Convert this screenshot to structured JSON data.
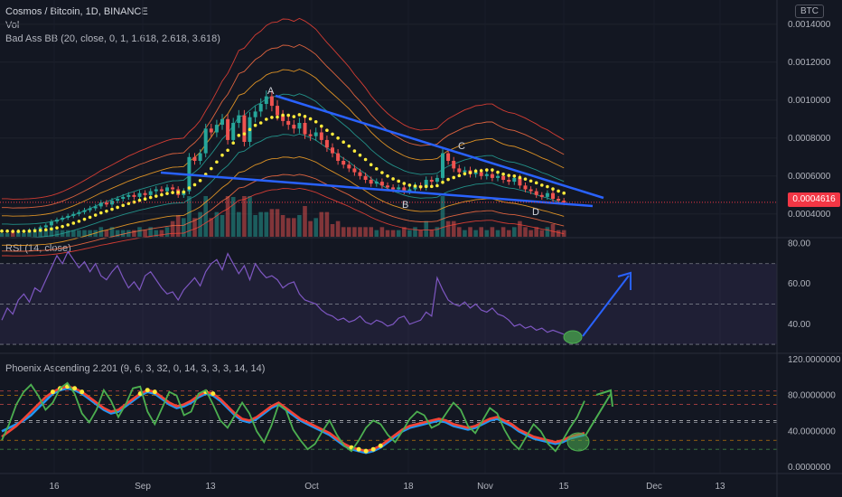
{
  "header": {
    "symbol": "Cosmos / Bitcoin, 1D, BINANCE",
    "vol_label": "Vol",
    "indicator_bb": "Bad Ass BB (20, close, 0, 1, 1.618, 2.618, 3.618)",
    "currency_button": "BTC"
  },
  "colors": {
    "background": "#131722",
    "up": "#26a69a",
    "down": "#ef5350",
    "rsi_line": "#7e57c2",
    "trend_line": "#2962ff",
    "ma_dots": "#ffeb3b"
  },
  "price_tag": "0.0004616",
  "rsi_panel": {
    "label": "RSI (14, close)"
  },
  "phoenix_panel": {
    "label": "Phoenix Ascending 2.201 (9, 6, 3, 32, 0, 14, 3, 3, 3, 14, 14)"
  },
  "annotations": {
    "a": "A",
    "b": "B",
    "c": "C",
    "d": "D"
  },
  "chart_data": [
    {
      "type": "candlestick",
      "title": "Cosmos / Bitcoin, 1D, BINANCE",
      "y_axis_ticks": [
        "0.0014000",
        "0.0012000",
        "0.0010000",
        "0.0008000",
        "0.0006000",
        "0.0004000"
      ],
      "ylim": [
        0.00028,
        0.00148
      ],
      "x_axis_ticks": [
        "16",
        "Sep",
        "13",
        "Oct",
        "18",
        "Nov",
        "15",
        "Dec",
        "13"
      ],
      "last_price": 0.0004616,
      "close_series": [
        0.00031,
        0.00031,
        0.000305,
        0.00031,
        0.00031,
        0.000315,
        0.00032,
        0.00033,
        0.00034,
        0.00036,
        0.00037,
        0.00038,
        0.00039,
        0.0004,
        0.00041,
        0.00042,
        0.00043,
        0.00044,
        0.00046,
        0.00045,
        0.00047,
        0.00048,
        0.00049,
        0.0005,
        0.00049,
        0.00051,
        0.0005,
        0.00052,
        0.00053,
        0.00052,
        0.00054,
        0.00053,
        0.0005,
        0.00052,
        0.0007,
        0.00068,
        0.00072,
        0.00085,
        0.00083,
        0.00087,
        0.0009,
        0.00079,
        0.00088,
        0.00092,
        0.00078,
        0.00091,
        0.00094,
        0.00098,
        0.00102,
        0.00097,
        0.00092,
        0.00089,
        0.00087,
        0.00085,
        0.00088,
        0.00082,
        0.00081,
        0.00083,
        0.00079,
        0.00075,
        0.00072,
        0.00068,
        0.00066,
        0.00064,
        0.00062,
        0.0006,
        0.00058,
        0.00056,
        0.00057,
        0.00055,
        0.00054,
        0.00053,
        0.00054,
        0.00052,
        0.00053,
        0.00055,
        0.00054,
        0.00058,
        0.00057,
        0.00059,
        0.00072,
        0.00068,
        0.00064,
        0.00062,
        0.00063,
        0.00061,
        0.00062,
        0.0006,
        0.00061,
        0.00059,
        0.0006,
        0.00058,
        0.00057,
        0.00059,
        0.00055,
        0.00053,
        0.00052,
        0.0005,
        0.00049,
        0.00051,
        0.00048,
        0.00047,
        0.00046
      ]
    },
    {
      "type": "line",
      "title": "RSI (14, close)",
      "y_axis_ticks": [
        "80.00",
        "60.00",
        "40.00"
      ],
      "ylim": [
        26,
        82
      ],
      "bands": [
        70,
        50,
        30
      ],
      "values": [
        42,
        48,
        45,
        52,
        55,
        51,
        58,
        56,
        62,
        68,
        74,
        70,
        76,
        72,
        68,
        71,
        66,
        70,
        64,
        62,
        66,
        69,
        63,
        58,
        61,
        57,
        64,
        66,
        62,
        58,
        55,
        56,
        52,
        57,
        60,
        63,
        59,
        66,
        70,
        72,
        67,
        75,
        70,
        65,
        69,
        62,
        70,
        66,
        63,
        64,
        62,
        58,
        60,
        61,
        55,
        52,
        51,
        50,
        47,
        45,
        44,
        42,
        43,
        41,
        42,
        44,
        41,
        40,
        42,
        41,
        39,
        40,
        43,
        44,
        40,
        41,
        42,
        46,
        44,
        63,
        57,
        52,
        50,
        49,
        51,
        48,
        50,
        47,
        46,
        48,
        45,
        44,
        42,
        39,
        40,
        38,
        39,
        37,
        38,
        36,
        37,
        36,
        35
      ]
    },
    {
      "type": "line",
      "title": "Phoenix Ascending 2.201 (9, 6, 3, 32, 0, 14, 3, 3, 3, 14, 14)",
      "y_axis_ticks": [
        "120.0000000",
        "80.0000000",
        "40.0000000",
        "0.0000000"
      ],
      "ylim": [
        -5,
        125
      ],
      "series": [
        {
          "values": [
            40,
            44,
            48,
            52,
            58,
            66,
            74,
            82,
            86,
            88,
            86,
            82,
            76,
            70,
            64,
            60,
            62,
            68,
            74,
            80,
            84,
            82,
            76,
            70,
            66,
            68,
            72,
            78,
            82,
            80,
            74,
            66,
            58,
            52,
            50,
            54,
            60,
            66,
            70,
            64,
            58,
            52,
            48,
            44,
            40,
            36,
            30,
            24,
            20,
            18,
            16,
            18,
            22,
            28,
            34,
            40,
            44,
            46,
            48,
            50,
            52,
            50,
            46,
            44,
            42,
            44,
            48,
            52,
            54,
            50,
            46,
            40,
            36,
            32,
            30,
            28,
            26,
            28,
            32,
            34,
            36
          ]
        },
        {
          "values": [
            34,
            40,
            46,
            54,
            62,
            70,
            78,
            84,
            88,
            90,
            88,
            84,
            78,
            72,
            66,
            62,
            64,
            70,
            76,
            82,
            86,
            84,
            78,
            72,
            68,
            70,
            74,
            80,
            84,
            82,
            76,
            68,
            60,
            54,
            52,
            56,
            62,
            68,
            72,
            66,
            60,
            54,
            50,
            46,
            42,
            38,
            32,
            26,
            22,
            20,
            18,
            20,
            24,
            30,
            36,
            42,
            46,
            48,
            50,
            52,
            54,
            52,
            48,
            46,
            44,
            46,
            50,
            54,
            56,
            52,
            48,
            42,
            38,
            34,
            32,
            30,
            28,
            30,
            34,
            36,
            38
          ]
        },
        {
          "values": [
            30,
            48,
            70,
            84,
            92,
            80,
            64,
            72,
            88,
            94,
            82,
            60,
            50,
            64,
            86,
            74,
            56,
            70,
            88,
            90,
            62,
            48,
            66,
            84,
            80,
            58,
            62,
            82,
            86,
            70,
            52,
            44,
            58,
            72,
            60,
            40,
            28,
            46,
            70,
            64,
            42,
            30,
            20,
            26,
            40,
            52,
            36,
            24,
            18,
            30,
            44,
            52,
            48,
            36,
            28,
            40,
            54,
            62,
            58,
            44,
            48,
            60,
            72,
            64,
            46,
            38,
            52,
            66,
            60,
            42,
            28,
            20,
            34,
            48,
            40,
            26,
            18,
            30,
            44,
            56,
            74
          ]
        }
      ]
    }
  ]
}
